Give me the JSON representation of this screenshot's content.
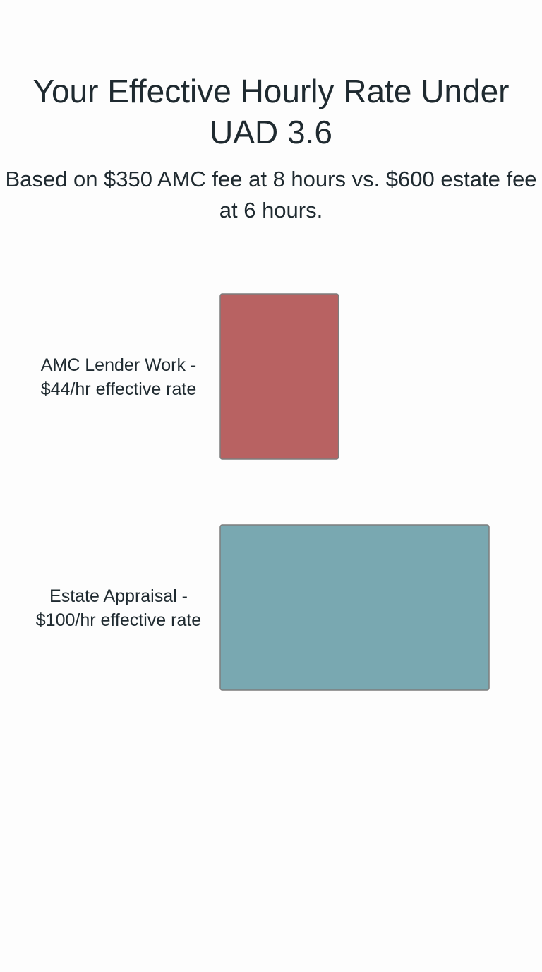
{
  "chart_data": {
    "type": "bar",
    "orientation": "horizontal",
    "title": "Your Effective Hourly Rate Under UAD 3.6",
    "subtitle": "Based on $350 AMC fee at 8 hours vs. $600 estate fee at 6 hours.",
    "categories": [
      [
        "AMC Lender Work -",
        "$44/hr effective rate"
      ],
      [
        "Estate Appraisal -",
        "$100/hr effective rate"
      ]
    ],
    "values": [
      44,
      100
    ],
    "xlim": [
      0,
      100
    ],
    "grid": false,
    "legend": "none",
    "colors": [
      "#b86262",
      "#79a8b1"
    ],
    "edge_color": "#7d7d7d"
  }
}
